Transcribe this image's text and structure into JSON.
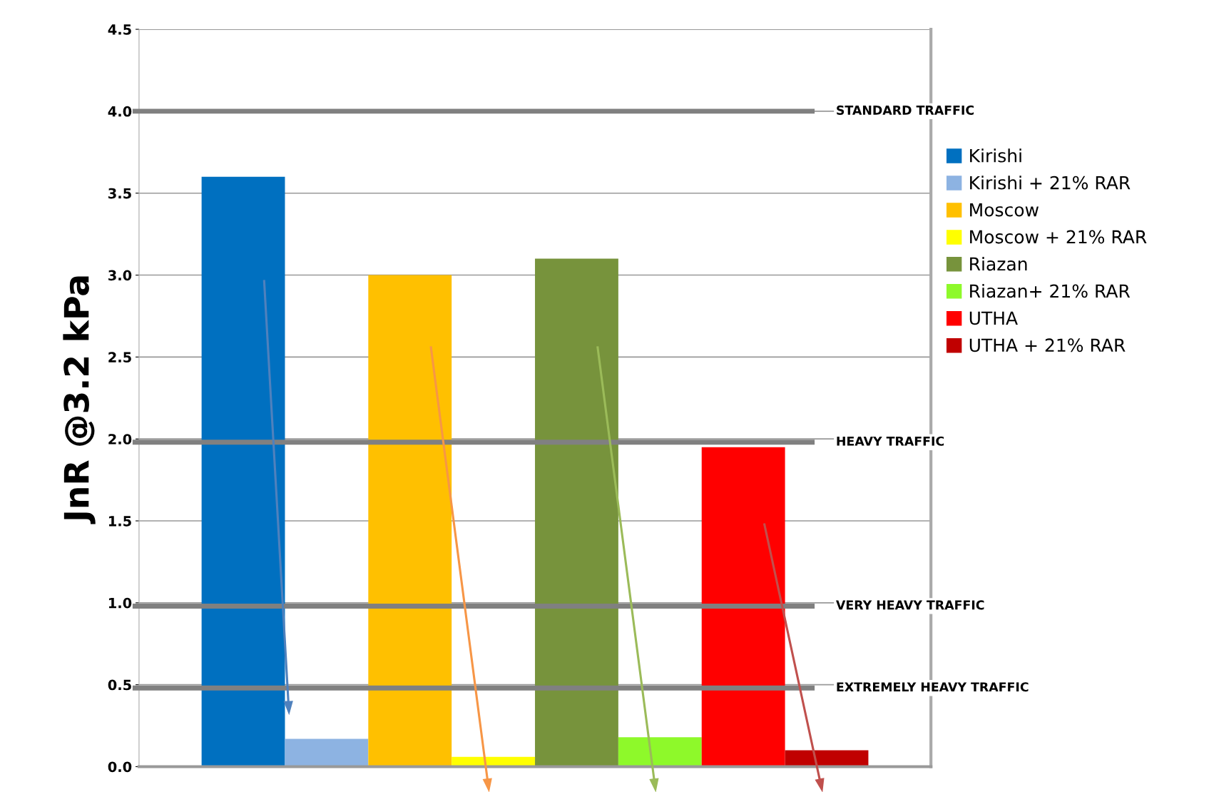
{
  "chart_data": {
    "type": "bar",
    "ylabel": "JnR @3.2 kPa",
    "categories": [
      null
    ],
    "series": [
      {
        "name": "Kirishi",
        "color": "#0070c0",
        "values": [
          3.6
        ]
      },
      {
        "name": "Kirishi + 21% RAR",
        "color": "#8db3e2",
        "values": [
          0.17
        ]
      },
      {
        "name": "Moscow",
        "color": "#ffc000",
        "values": [
          3.0
        ]
      },
      {
        "name": "Moscow + 21% RAR",
        "color": "#ffff00",
        "values": [
          0.06
        ]
      },
      {
        "name": "Riazan",
        "color": "#77933c",
        "values": [
          3.1
        ]
      },
      {
        "name": "Riazan+ 21% RAR",
        "color": "#8ef92a",
        "values": [
          0.18
        ]
      },
      {
        "name": "UTHA",
        "color": "#ff0000",
        "values": [
          1.95
        ]
      },
      {
        "name": "UTHA + 21% RAR",
        "color": "#c00000",
        "values": [
          0.1
        ]
      }
    ],
    "ylim": [
      0,
      4.5
    ],
    "yticks": [
      {
        "value": 0,
        "label": "0.0"
      },
      0.5,
      {
        "value": 1,
        "label": "1.0"
      },
      1.5,
      {
        "value": 2,
        "label": "2.0"
      },
      2.5,
      {
        "value": 3,
        "label": "3.0"
      },
      3.5,
      {
        "value": 4,
        "label": "4.0"
      },
      4.5
    ],
    "grid": "y",
    "legend": "right",
    "ref_lines": [
      {
        "axis": "y",
        "value": 4.0,
        "label": "STANDARD TRAFFIC",
        "color": "#808080"
      },
      {
        "axis": "y",
        "value": 1.98,
        "label": "HEAVY TRAFFIC",
        "color": "#808080"
      },
      {
        "axis": "y",
        "value": 0.98,
        "label": "VERY HEAVY TRAFFIC",
        "color": "#808080"
      },
      {
        "axis": "y",
        "value": 0.48,
        "label": "EXTREMELY HEAVY TRAFFIC",
        "color": "#808080"
      }
    ]
  }
}
